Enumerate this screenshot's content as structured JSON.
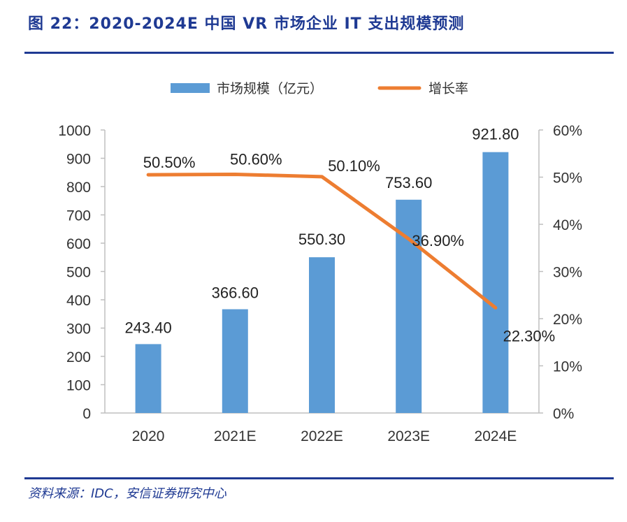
{
  "figure": {
    "title": "图 22：2020-2024E 中国 VR 市场企业 IT 支出规模预测",
    "source": "资料来源：IDC，安信证券研究中心"
  },
  "colors": {
    "bar": "#5b9bd5",
    "line": "#ed7d31",
    "accent": "#1f3a93"
  },
  "chart_data": {
    "type": "bar",
    "categories": [
      "2020",
      "2021E",
      "2022E",
      "2023E",
      "2024E"
    ],
    "series": [
      {
        "name": "市场规模（亿元）",
        "type": "bar",
        "axis": "left",
        "values": [
          243.4,
          366.6,
          550.3,
          753.6,
          921.8
        ],
        "labels": [
          "243.40",
          "366.60",
          "550.30",
          "753.60",
          "921.80"
        ]
      },
      {
        "name": "增长率",
        "type": "line",
        "axis": "right",
        "values": [
          50.5,
          50.6,
          50.1,
          36.9,
          22.3
        ],
        "labels": [
          "50.50%",
          "50.60%",
          "50.10%",
          "36.90%",
          "22.30%"
        ]
      }
    ],
    "y_left": {
      "min": 0,
      "max": 1000,
      "step": 100,
      "ticks": [
        "0",
        "100",
        "200",
        "300",
        "400",
        "500",
        "600",
        "700",
        "800",
        "900",
        "1000"
      ]
    },
    "y_right": {
      "min": 0,
      "max": 60,
      "step": 10,
      "ticks": [
        "0%",
        "10%",
        "20%",
        "30%",
        "40%",
        "50%",
        "60%"
      ]
    },
    "legend_position": "top-center",
    "grid": false
  }
}
